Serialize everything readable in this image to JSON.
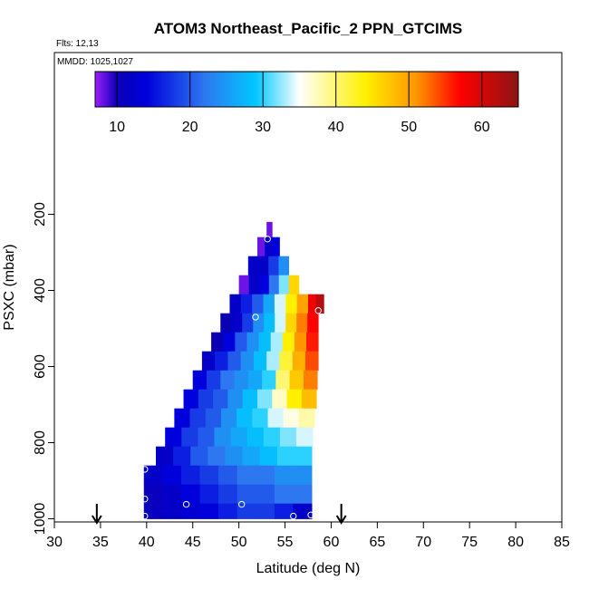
{
  "chart_data": {
    "type": "heatmap",
    "title": "ATOM3 Northeast_Pacific_2 PPN_GTCIMS",
    "subtitle_flights": "Flts: 12,13",
    "subtitle_dates": "MMDD: 1025,1027",
    "xlabel": "Latitude (deg N)",
    "ylabel": "PSXC (mbar)",
    "xlim": [
      30,
      85
    ],
    "ylim": [
      1000,
      0
    ],
    "x_ticks": [
      30,
      35,
      40,
      45,
      50,
      55,
      60,
      65,
      70,
      75,
      80,
      85
    ],
    "y_ticks": [
      200,
      400,
      600,
      800,
      1000
    ],
    "colorbar": {
      "range": [
        7,
        65
      ],
      "ticks": [
        10,
        20,
        30,
        40,
        50,
        60
      ],
      "colors": [
        "#9d1dff",
        "#0a00b4",
        "#0000dc",
        "#2d78f0",
        "#00c8ff",
        "#ffffff",
        "#fff000",
        "#ff9600",
        "#ff0000",
        "#8c1414"
      ],
      "color_stops": [
        7,
        10,
        14,
        22,
        29,
        35,
        44,
        51,
        57,
        65
      ]
    },
    "arrows_latitude": [
      34.6,
      61.1
    ],
    "bands": [
      {
        "p_top": 220,
        "p_bot": 260,
        "x0": 53.0,
        "x1": 53.6,
        "values": [
          8
        ]
      },
      {
        "p_top": 260,
        "p_bot": 310,
        "x0": 52.0,
        "x1": 54.4,
        "values": [
          8,
          12,
          14
        ]
      },
      {
        "p_top": 310,
        "p_bot": 360,
        "x0": 51.0,
        "x1": 55.4,
        "values": [
          12,
          12,
          18,
          24
        ]
      },
      {
        "p_top": 360,
        "p_bot": 410,
        "x0": 50.0,
        "x1": 56.5,
        "values": [
          8,
          12,
          14,
          22,
          32,
          46
        ]
      },
      {
        "p_top": 410,
        "p_bot": 460,
        "x0": 49.0,
        "x1": 57.5,
        "values": [
          12,
          16,
          20,
          26,
          34,
          44,
          50
        ]
      },
      {
        "p_top": 410,
        "p_bot": 460,
        "x0": 57.5,
        "x1": 59.2,
        "values": [
          58,
          62
        ]
      },
      {
        "p_top": 460,
        "p_bot": 510,
        "x0": 48.0,
        "x1": 58.6,
        "values": [
          10,
          12,
          18,
          24,
          28,
          34,
          46,
          52,
          57
        ]
      },
      {
        "p_top": 510,
        "p_bot": 560,
        "x0": 47.0,
        "x1": 58.6,
        "values": [
          10,
          14,
          20,
          24,
          28,
          33,
          44,
          51,
          56
        ]
      },
      {
        "p_top": 560,
        "p_bot": 610,
        "x0": 46.0,
        "x1": 58.6,
        "values": [
          12,
          16,
          20,
          24,
          28,
          33,
          42,
          49,
          54
        ]
      },
      {
        "p_top": 610,
        "p_bot": 660,
        "x0": 45.0,
        "x1": 58.5,
        "values": [
          14,
          18,
          22,
          24,
          26,
          30,
          40,
          47,
          52
        ]
      },
      {
        "p_top": 660,
        "p_bot": 710,
        "x0": 44.0,
        "x1": 58.4,
        "values": [
          14,
          18,
          20,
          24,
          28,
          32,
          37,
          44,
          48
        ]
      },
      {
        "p_top": 710,
        "p_bot": 760,
        "x0": 43.0,
        "x1": 58.2,
        "values": [
          14,
          18,
          20,
          24,
          28,
          30,
          34,
          36,
          38
        ]
      },
      {
        "p_top": 760,
        "p_bot": 810,
        "x0": 42.0,
        "x1": 58.0,
        "values": [
          14,
          18,
          20,
          24,
          26,
          28,
          30,
          32,
          34
        ]
      },
      {
        "p_top": 810,
        "p_bot": 860,
        "x0": 41.0,
        "x1": 57.9,
        "values": [
          12,
          16,
          20,
          22,
          24,
          26,
          28,
          30,
          30
        ]
      },
      {
        "p_top": 860,
        "p_bot": 910,
        "x0": 39.7,
        "x1": 57.9,
        "values": [
          12,
          14,
          16,
          18,
          20,
          22,
          22,
          24,
          24
        ]
      },
      {
        "p_top": 910,
        "p_bot": 960,
        "x0": 39.7,
        "x1": 57.9,
        "values": [
          11,
          12,
          14,
          16,
          18,
          20,
          20,
          22,
          22
        ]
      },
      {
        "p_top": 960,
        "p_bot": 1000,
        "x0": 39.7,
        "x1": 57.9,
        "values": [
          11,
          12,
          13,
          14,
          16,
          18,
          18,
          16,
          12
        ]
      }
    ],
    "samples": [
      {
        "lat": 53.1,
        "p": 265
      },
      {
        "lat": 51.8,
        "p": 470
      },
      {
        "lat": 58.6,
        "p": 453
      },
      {
        "lat": 39.8,
        "p": 870
      },
      {
        "lat": 39.8,
        "p": 948
      },
      {
        "lat": 44.3,
        "p": 962
      },
      {
        "lat": 50.3,
        "p": 962
      },
      {
        "lat": 39.8,
        "p": 993
      },
      {
        "lat": 55.9,
        "p": 993
      },
      {
        "lat": 57.8,
        "p": 990
      }
    ]
  }
}
